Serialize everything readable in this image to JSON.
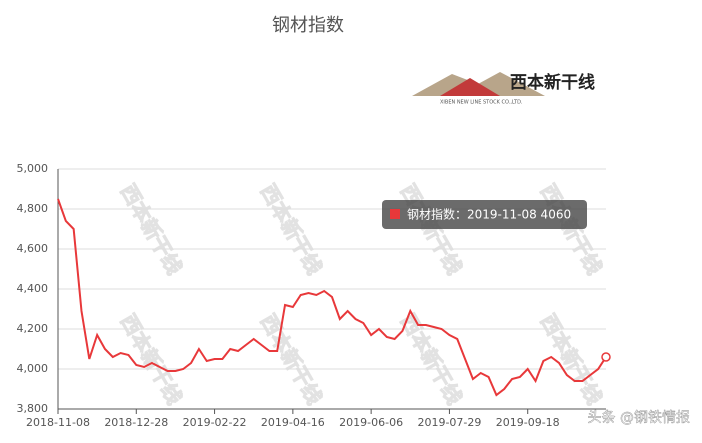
{
  "chart_data": {
    "type": "line",
    "title": "钢材指数",
    "logo": {
      "name": "西本新干线",
      "subtitle": "XIBEN NEW LINE STOCK CO.,LTD."
    },
    "categories": [
      "2018-11-08",
      null,
      null,
      null,
      null,
      null,
      null,
      null,
      null,
      null,
      "2018-12-28",
      null,
      null,
      null,
      null,
      null,
      null,
      null,
      null,
      null,
      "2019-02-22",
      null,
      null,
      null,
      null,
      null,
      null,
      null,
      null,
      null,
      "2019-04-16",
      null,
      null,
      null,
      null,
      null,
      null,
      null,
      null,
      null,
      "2019-06-06",
      null,
      null,
      null,
      null,
      null,
      null,
      null,
      null,
      null,
      "2019-07-29",
      null,
      null,
      null,
      null,
      null,
      null,
      null,
      null,
      null,
      "2019-09-18",
      null,
      null,
      null,
      null,
      null,
      null,
      null,
      null,
      null,
      null
    ],
    "series": [
      {
        "name": "钢材指数",
        "color": "#e8383a",
        "values": [
          4850,
          4740,
          4700,
          4290,
          4050,
          4170,
          4100,
          4060,
          4080,
          4070,
          4020,
          4010,
          4030,
          4010,
          3990,
          3990,
          4000,
          4030,
          4100,
          4040,
          4050,
          4050,
          4100,
          4090,
          4120,
          4150,
          4120,
          4090,
          4090,
          4320,
          4310,
          4370,
          4380,
          4370,
          4390,
          4360,
          4250,
          4290,
          4250,
          4230,
          4170,
          4200,
          4160,
          4150,
          4190,
          4290,
          4220,
          4220,
          4210,
          4200,
          4170,
          4150,
          4050,
          3950,
          3980,
          3960,
          3870,
          3900,
          3950,
          3960,
          4000,
          3940,
          4040,
          4060,
          4030,
          3970,
          3940,
          3940,
          3970,
          4000,
          4060
        ]
      }
    ],
    "ylim": [
      3800,
      5000
    ],
    "yticks": [
      {
        "value": 3800,
        "label": "3,800"
      },
      {
        "value": 4000,
        "label": "4,000"
      },
      {
        "value": 4200,
        "label": "4,200"
      },
      {
        "value": 4400,
        "label": "4,400"
      },
      {
        "value": 4600,
        "label": "4,600"
      },
      {
        "value": 4800,
        "label": "4,800"
      },
      {
        "value": 5000,
        "label": "5,000"
      }
    ],
    "grid": true,
    "tooltip": "钢材指数：2019-11-08 4060",
    "footer": "头条 @钢铁情报"
  }
}
